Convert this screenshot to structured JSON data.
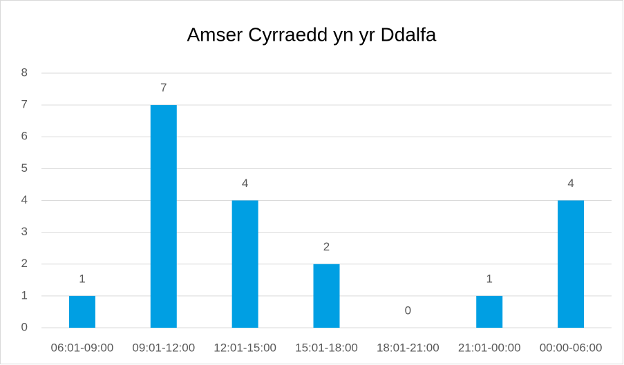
{
  "chart_data": {
    "type": "bar",
    "title": "Amser Cyrraedd yn yr Ddalfa",
    "categories": [
      "06:01-09:00",
      "09:01-12:00",
      "12:01-15:00",
      "15:01-18:00",
      "18:01-21:00",
      "21:01-00:00",
      "00:00-06:00"
    ],
    "values": [
      1,
      7,
      4,
      2,
      0,
      1,
      4
    ],
    "color": "#009fe3",
    "ylim": [
      0,
      8
    ],
    "yticks": [
      0,
      1,
      2,
      3,
      4,
      5,
      6,
      7,
      8
    ],
    "grid": true
  }
}
